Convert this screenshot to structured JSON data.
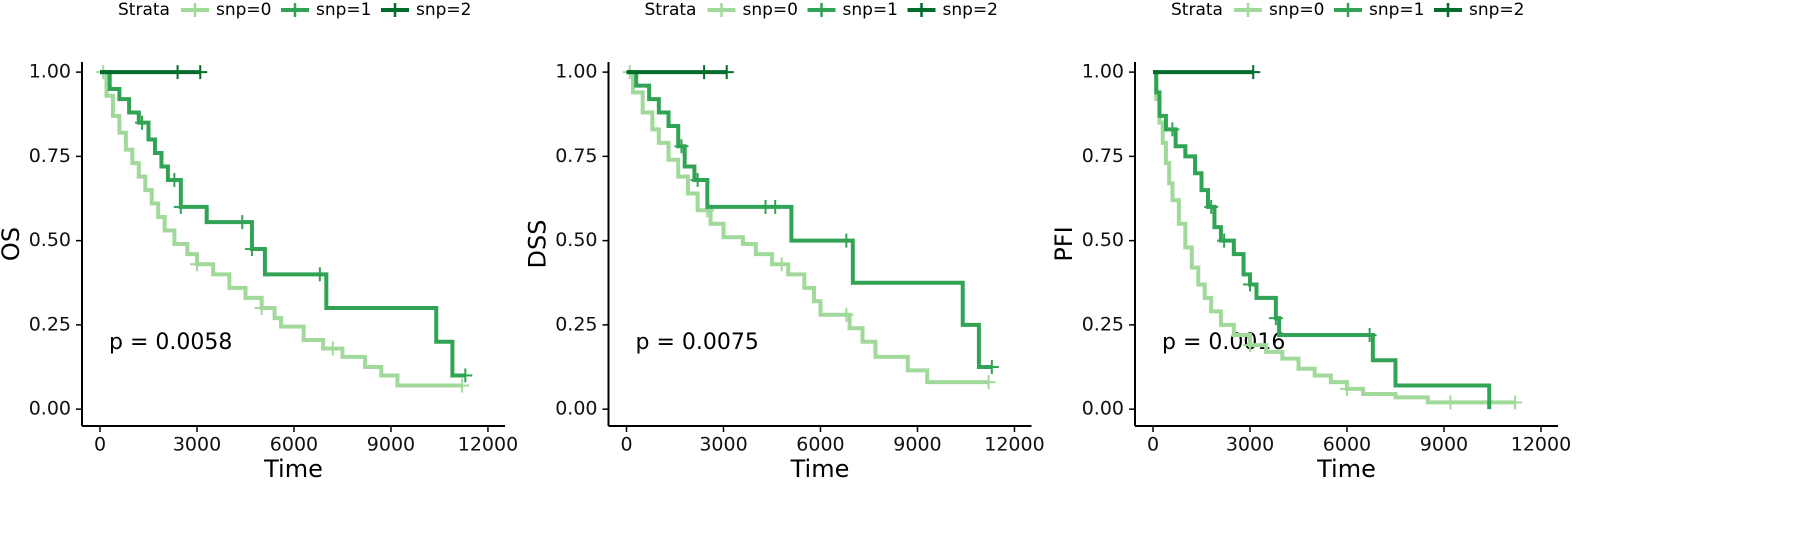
{
  "chart_data": [
    {
      "type": "step",
      "legend_title": "Strata",
      "ylabel": "OS",
      "xlabel": "Time",
      "annotation": "p = 0.0058",
      "xlim": [
        -557,
        12527
      ],
      "ylim": [
        -0.05,
        1.03
      ],
      "xticks": [
        0,
        3000,
        6000,
        9000,
        12000
      ],
      "yticks": [
        {
          "value": 0,
          "label": "0.00"
        },
        {
          "value": 0.25,
          "label": "0.25"
        },
        {
          "value": 0.5,
          "label": "0.50"
        },
        {
          "value": 0.75,
          "label": "0.75"
        },
        {
          "value": 1,
          "label": "1.00"
        }
      ],
      "series": [
        {
          "name": "snp=0",
          "color": "#a1d99b",
          "x": [
            0,
            200,
            400,
            600,
            800,
            1000,
            1200,
            1400,
            1600,
            1800,
            2000,
            2300,
            2700,
            3000,
            3500,
            4000,
            4500,
            5000,
            5400,
            5600,
            6300,
            6900,
            7500,
            8200,
            8700,
            9200,
            11200
          ],
          "values": [
            1,
            0.93,
            0.87,
            0.82,
            0.77,
            0.73,
            0.69,
            0.65,
            0.61,
            0.57,
            0.53,
            0.49,
            0.46,
            0.43,
            0.4,
            0.36,
            0.33,
            0.3,
            0.27,
            0.245,
            0.205,
            0.18,
            0.155,
            0.125,
            0.1,
            0.07,
            0.07
          ],
          "censor_x": [
            100,
            3000,
            5000,
            7200,
            11200
          ]
        },
        {
          "name": "snp=1",
          "color": "#31a354",
          "x": [
            0,
            300,
            600,
            900,
            1200,
            1500,
            1700,
            1900,
            2100,
            2500,
            3300,
            4700,
            5100,
            7000,
            10400,
            10900,
            11300
          ],
          "values": [
            1,
            0.95,
            0.92,
            0.88,
            0.85,
            0.8,
            0.76,
            0.72,
            0.68,
            0.6,
            0.555,
            0.475,
            0.4,
            0.3,
            0.2,
            0.1,
            0.1
          ],
          "censor_x": [
            1300,
            2300,
            2500,
            4400,
            4700,
            6800,
            11300
          ]
        },
        {
          "name": "snp=2",
          "color": "#006d2c",
          "x": [
            0,
            3100
          ],
          "values": [
            1,
            1
          ],
          "censor_x": [
            2400,
            3100
          ]
        }
      ]
    },
    {
      "type": "step",
      "legend_title": "Strata",
      "ylabel": "DSS",
      "xlabel": "Time",
      "annotation": "p = 0.0075",
      "xlim": [
        -557,
        12527
      ],
      "ylim": [
        -0.05,
        1.03
      ],
      "xticks": [
        0,
        3000,
        6000,
        9000,
        12000
      ],
      "yticks": [
        {
          "value": 0,
          "label": "0.00"
        },
        {
          "value": 0.25,
          "label": "0.25"
        },
        {
          "value": 0.5,
          "label": "0.50"
        },
        {
          "value": 0.75,
          "label": "0.75"
        },
        {
          "value": 1,
          "label": "1.00"
        }
      ],
      "series": [
        {
          "name": "snp=0",
          "color": "#a1d99b",
          "x": [
            0,
            200,
            500,
            800,
            1000,
            1300,
            1600,
            1900,
            2200,
            2600,
            3000,
            3600,
            4000,
            4500,
            5000,
            5500,
            5800,
            6000,
            6900,
            7300,
            7700,
            8700,
            9300,
            11200
          ],
          "values": [
            1,
            0.94,
            0.88,
            0.83,
            0.79,
            0.74,
            0.69,
            0.64,
            0.59,
            0.55,
            0.51,
            0.49,
            0.46,
            0.43,
            0.4,
            0.36,
            0.32,
            0.28,
            0.24,
            0.2,
            0.155,
            0.115,
            0.08,
            0.08
          ],
          "censor_x": [
            100,
            2500,
            4800,
            6800,
            11200
          ]
        },
        {
          "name": "snp=1",
          "color": "#31a354",
          "x": [
            0,
            300,
            700,
            1000,
            1300,
            1600,
            1800,
            2100,
            2500,
            5100,
            7000,
            10400,
            10900,
            11300
          ],
          "values": [
            1,
            0.96,
            0.92,
            0.88,
            0.84,
            0.78,
            0.72,
            0.68,
            0.6,
            0.5,
            0.375,
            0.25,
            0.125,
            0.125
          ],
          "censor_x": [
            1700,
            2200,
            4300,
            4600,
            6800,
            11300
          ]
        },
        {
          "name": "snp=2",
          "color": "#006d2c",
          "x": [
            0,
            3100
          ],
          "values": [
            1,
            1
          ],
          "censor_x": [
            2400,
            3100
          ]
        }
      ]
    },
    {
      "type": "step",
      "legend_title": "Strata",
      "ylabel": "PFI",
      "xlabel": "Time",
      "annotation": "p = 0.0016",
      "xlim": [
        -557,
        12527
      ],
      "ylim": [
        -0.05,
        1.03
      ],
      "xticks": [
        0,
        3000,
        6000,
        9000,
        12000
      ],
      "yticks": [
        {
          "value": 0,
          "label": "0.00"
        },
        {
          "value": 0.25,
          "label": "0.25"
        },
        {
          "value": 0.5,
          "label": "0.50"
        },
        {
          "value": 0.75,
          "label": "0.75"
        },
        {
          "value": 1,
          "label": "1.00"
        }
      ],
      "series": [
        {
          "name": "snp=0",
          "color": "#a1d99b",
          "x": [
            0,
            100,
            200,
            300,
            400,
            500,
            600,
            800,
            1000,
            1200,
            1400,
            1600,
            1800,
            2100,
            2500,
            3000,
            3500,
            4000,
            4500,
            5000,
            5500,
            6000,
            6500,
            7500,
            8500,
            11200
          ],
          "values": [
            1,
            0.92,
            0.85,
            0.79,
            0.73,
            0.67,
            0.62,
            0.55,
            0.48,
            0.42,
            0.37,
            0.33,
            0.29,
            0.25,
            0.22,
            0.19,
            0.17,
            0.15,
            0.12,
            0.1,
            0.08,
            0.06,
            0.045,
            0.035,
            0.02,
            0.02
          ],
          "censor_x": [
            3000,
            6000,
            9200,
            11200
          ]
        },
        {
          "name": "snp=1",
          "color": "#31a354",
          "x": [
            0,
            100,
            200,
            400,
            700,
            1000,
            1300,
            1500,
            1700,
            1900,
            2100,
            2500,
            2800,
            3000,
            3200,
            3800,
            3900,
            6800,
            7500,
            10400
          ],
          "values": [
            1,
            0.94,
            0.87,
            0.83,
            0.78,
            0.75,
            0.7,
            0.65,
            0.6,
            0.54,
            0.5,
            0.46,
            0.4,
            0.37,
            0.33,
            0.27,
            0.22,
            0.145,
            0.07,
            0
          ],
          "censor_x": [
            600,
            1800,
            2200,
            3000,
            3800,
            6700
          ]
        },
        {
          "name": "snp=2",
          "color": "#006d2c",
          "x": [
            0,
            3100
          ],
          "values": [
            1,
            1
          ],
          "censor_x": [
            3100
          ]
        }
      ]
    }
  ]
}
